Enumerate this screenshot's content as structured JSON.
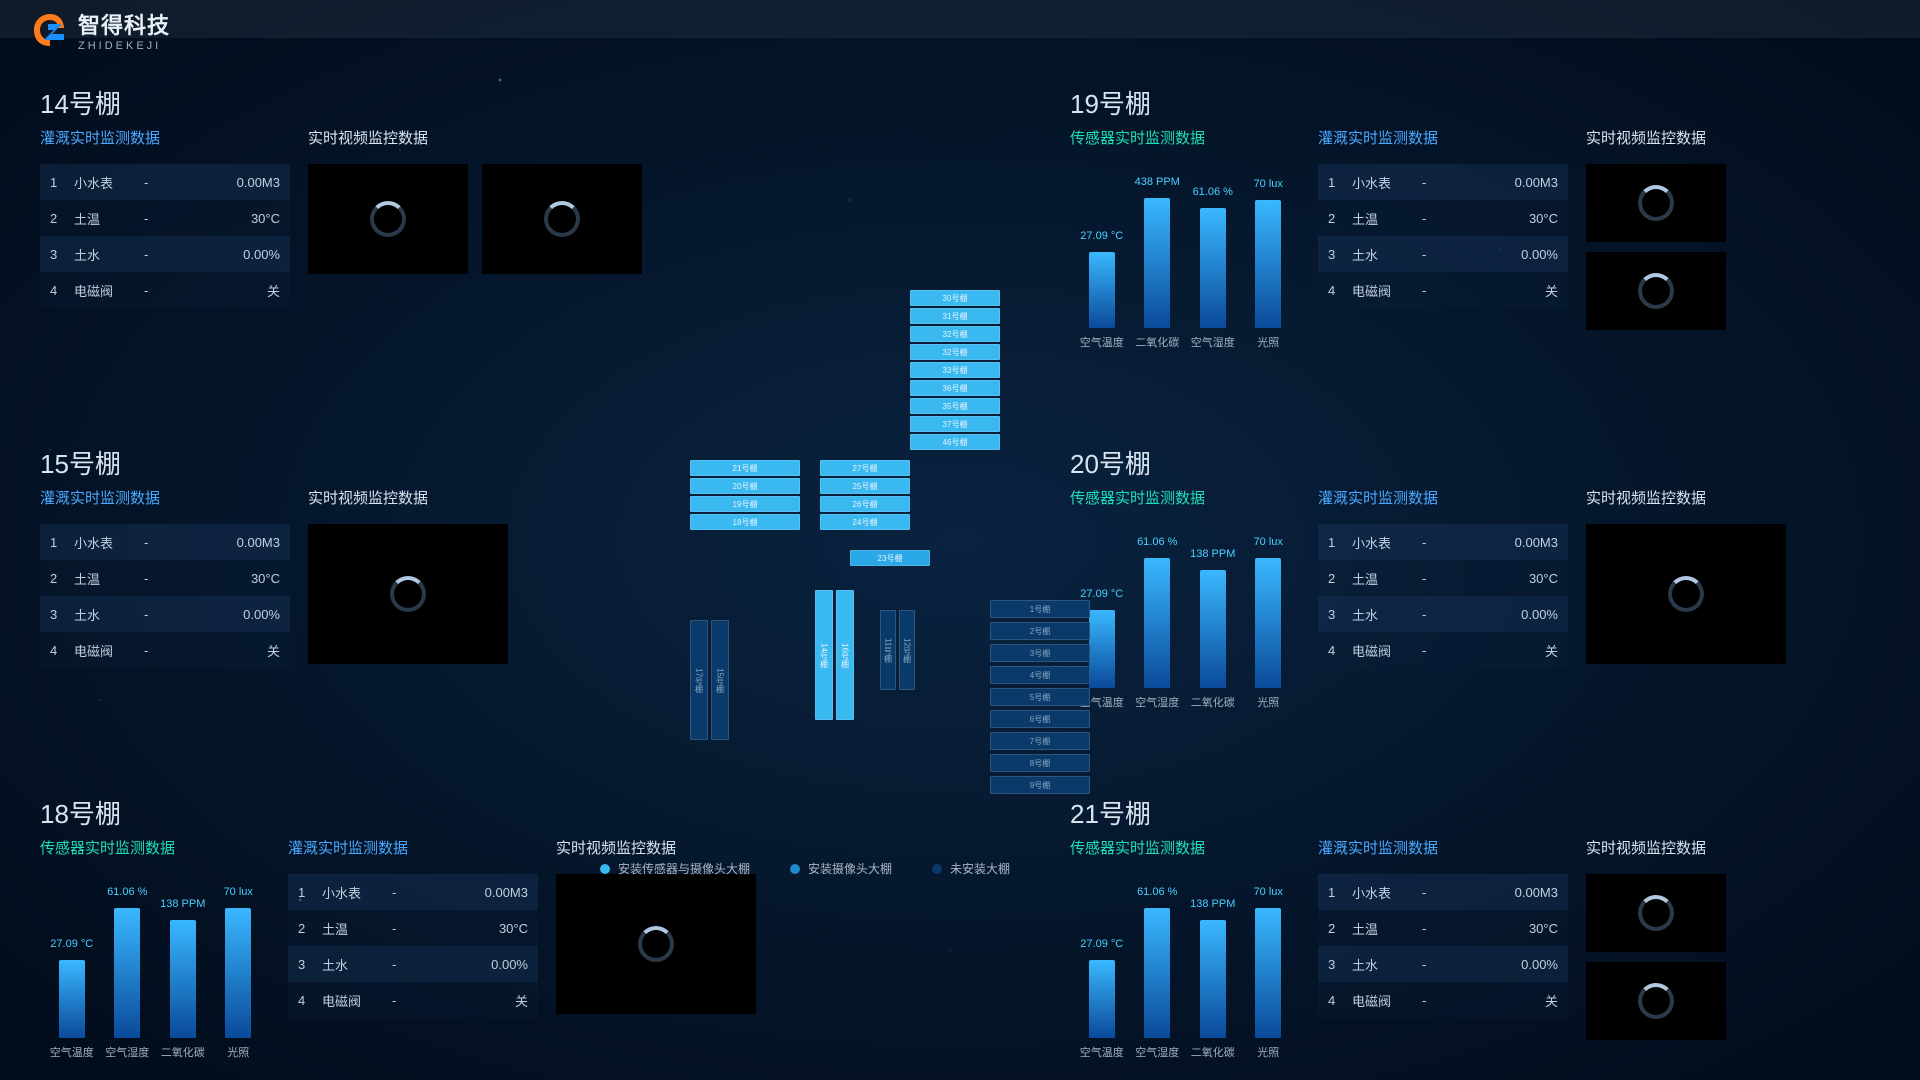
{
  "brand": {
    "cn": "智得科技",
    "en": "ZHIDEKEJI"
  },
  "section_titles": {
    "irrigation": "灌溉实时监测数据",
    "video": "实时视频监控数据",
    "sensor": "传感器实时监测数据"
  },
  "irrigation_rows": [
    {
      "idx": "1",
      "name": "小水表",
      "dash": "-",
      "value": "0.00M3"
    },
    {
      "idx": "2",
      "name": "土温",
      "dash": "-",
      "value": "30°C"
    },
    {
      "idx": "3",
      "name": "土水",
      "dash": "-",
      "value": "0.00%"
    },
    {
      "idx": "4",
      "name": "电磁阀",
      "dash": "-",
      "value": "关"
    }
  ],
  "sensor_labels": [
    "空气温度",
    "二氧化碳",
    "空气湿度",
    "光照"
  ],
  "sensor_labels_alt": [
    "空气温度",
    "空气湿度",
    "二氧化碳",
    "光照"
  ],
  "sheds": {
    "s14": {
      "title": "14号棚"
    },
    "s15": {
      "title": "15号棚"
    },
    "s18": {
      "title": "18号棚",
      "sensor_values": [
        "27.09 °C",
        "61.06 %",
        "138 PPM",
        "70 lux"
      ],
      "sensor_heights": [
        78,
        130,
        118,
        130
      ]
    },
    "s19": {
      "title": "19号棚",
      "sensor_values": [
        "27.09 °C",
        "438 PPM",
        "61.06 %",
        "70 lux"
      ],
      "sensor_heights": [
        76,
        130,
        120,
        128
      ]
    },
    "s20": {
      "title": "20号棚",
      "sensor_values": [
        "27.09 °C",
        "61.06 %",
        "138 PPM",
        "70 lux"
      ],
      "sensor_heights": [
        78,
        130,
        118,
        130
      ]
    },
    "s21": {
      "title": "21号棚",
      "sensor_values": [
        "27.09 °C",
        "61.06 %",
        "138 PPM",
        "70 lux"
      ],
      "sensor_heights": [
        78,
        130,
        118,
        130
      ]
    }
  },
  "legend": {
    "a": "安装传感器与摄像头大棚",
    "b": "安装摄像头大棚",
    "c": "未安装大棚"
  },
  "map": {
    "top_stack": [
      "30号棚",
      "31号棚",
      "32号棚",
      "32号棚",
      "33号棚",
      "36号棚",
      "35号棚",
      "37号棚",
      "46号棚"
    ],
    "left_group": [
      "21号棚",
      "20号棚",
      "19号棚",
      "18号棚"
    ],
    "right_group": [
      "27号棚",
      "25号棚",
      "26号棚",
      "24号棚"
    ],
    "iso": "23号棚",
    "v1": "14号棚",
    "v2": "16号棚",
    "v3": "17号棚",
    "v4": "15号棚",
    "vd1": "11号棚",
    "vd2": "12号棚",
    "right_list": [
      "1号棚",
      "2号棚",
      "3号棚",
      "4号棚",
      "5号棚",
      "6号棚",
      "7号棚",
      "8号棚",
      "9号棚"
    ]
  },
  "colors": {
    "green": "#1ee0b8",
    "blue": "#4aa8ff",
    "bar_from": "#0a4a9a",
    "bar_to": "#3ab8ff",
    "bg_row_a": "rgba(30,60,100,0.35)",
    "bg_row_b": "rgba(10,30,60,0.25)"
  }
}
